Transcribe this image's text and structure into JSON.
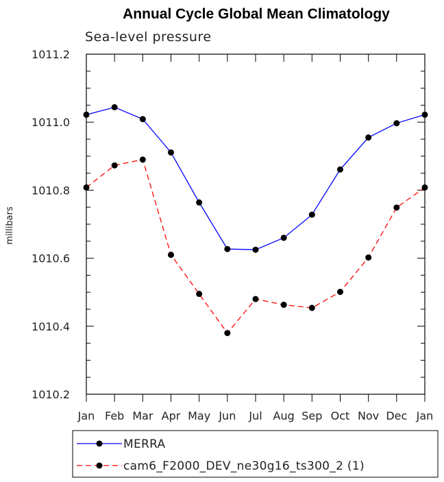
{
  "chart_data": {
    "type": "line",
    "title": "Annual Cycle Global Mean Climatology",
    "subtitle": "Sea-level pressure",
    "xlabel": "",
    "ylabel": "millibars",
    "categories": [
      "Jan",
      "Feb",
      "Mar",
      "Apr",
      "May",
      "Jun",
      "Jul",
      "Aug",
      "Sep",
      "Oct",
      "Nov",
      "Dec",
      "Jan"
    ],
    "ylim": [
      1010.2,
      1011.2
    ],
    "yticks": [
      1010.2,
      1010.4,
      1010.6,
      1010.8,
      1011.0,
      1011.2
    ],
    "ytick_labels": [
      "1010.2",
      "1010.4",
      "1010.6",
      "1010.8",
      "1011.0",
      "1011.2"
    ],
    "grid": false,
    "legend_position": "bottom",
    "series": [
      {
        "name": "MERRA",
        "color": "#0000ff",
        "dash": "solid",
        "values": [
          1011.022,
          1011.044,
          1011.009,
          1010.911,
          1010.764,
          1010.627,
          1010.625,
          1010.66,
          1010.728,
          1010.861,
          1010.955,
          1010.997,
          1011.022
        ]
      },
      {
        "name": "cam6_F2000_DEV_ne30g16_ts300_2 (1)",
        "color": "#ff0000",
        "dash": "dashed",
        "values": [
          1010.808,
          1010.873,
          1010.89,
          1010.61,
          1010.495,
          1010.38,
          1010.48,
          1010.463,
          1010.454,
          1010.501,
          1010.602,
          1010.749,
          1010.808
        ]
      }
    ],
    "marker_color": "#000000"
  }
}
